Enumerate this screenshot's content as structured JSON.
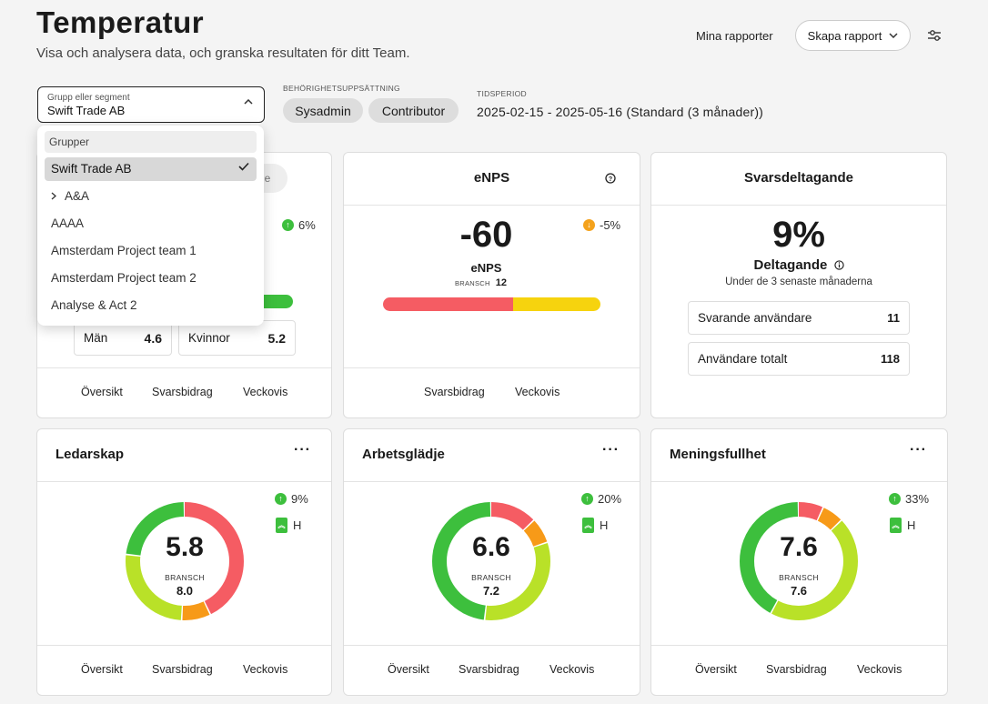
{
  "header": {
    "title": "Temperatur",
    "subtitle": "Visa och analysera data, och granska resultaten för ditt Team.",
    "my_reports": "Mina rapporter",
    "create_report": "Skapa rapport"
  },
  "filters": {
    "group_label": "Grupp eller segment",
    "group_value": "Swift Trade AB",
    "permission_label": "BEHÖRIGHETSUPPSÄTTNING",
    "permissions": [
      "Sysadmin",
      "Contributor"
    ],
    "period_label": "TIDSPERIOD",
    "period_value": "2025-02-15 - 2025-05-16 (Standard (3 månader))"
  },
  "dropdown": {
    "header": "Grupper",
    "items": [
      "Swift Trade AB",
      "A&A",
      "AAAA",
      "Amsterdam Project team 1",
      "Amsterdam Project team 2",
      "Analyse & Act 2"
    ],
    "selected_index": 0
  },
  "card_first": {
    "partial_tab": "ne",
    "trend": "6%",
    "genders": [
      {
        "label": "Män",
        "value": "4.6"
      },
      {
        "label": "Kvinnor",
        "value": "5.2"
      }
    ],
    "links": [
      "Översikt",
      "Svarsbidrag",
      "Veckovis"
    ]
  },
  "card_enps": {
    "title": "eNPS",
    "value": "-60",
    "label": "eNPS",
    "bench_label": "BRANSCH",
    "bench_value": "12",
    "trend": "-5%",
    "bar_red_fraction": 0.6,
    "links": [
      "Svarsbidrag",
      "Veckovis"
    ]
  },
  "card_participation": {
    "title": "Svarsdeltagande",
    "value": "9%",
    "label": "Deltagande",
    "sublabel": "Under de 3 senaste månaderna",
    "rows": [
      {
        "label": "Svarande användare",
        "value": "11"
      },
      {
        "label": "Användare totalt",
        "value": "118"
      }
    ]
  },
  "metric_cards": [
    {
      "title": "Ledarskap",
      "score": "5.8",
      "bench_label": "BRANSCH",
      "bench": "8.0",
      "trend": "9%",
      "level": "H",
      "segments": [
        {
          "color": "#f55c63",
          "value": 0.43
        },
        {
          "color": "#f79a18",
          "value": 0.08
        },
        {
          "color": "#b9e128",
          "value": 0.26
        },
        {
          "color": "#3dbf3d",
          "value": 0.23
        }
      ]
    },
    {
      "title": "Arbetsglädje",
      "score": "6.6",
      "bench_label": "BRANSCH",
      "bench": "7.2",
      "trend": "20%",
      "level": "H",
      "segments": [
        {
          "color": "#f55c63",
          "value": 0.13
        },
        {
          "color": "#f79a18",
          "value": 0.07
        },
        {
          "color": "#b9e128",
          "value": 0.32
        },
        {
          "color": "#3dbf3d",
          "value": 0.48
        }
      ]
    },
    {
      "title": "Meningsfullhet",
      "score": "7.6",
      "bench_label": "BRANSCH",
      "bench": "7.6",
      "trend": "33%",
      "level": "H",
      "segments": [
        {
          "color": "#f55c63",
          "value": 0.07
        },
        {
          "color": "#f79a18",
          "value": 0.06
        },
        {
          "color": "#b9e128",
          "value": 0.45
        },
        {
          "color": "#3dbf3d",
          "value": 0.42
        }
      ]
    }
  ],
  "metric_links": [
    "Översikt",
    "Svarsbidrag",
    "Veckovis"
  ],
  "colors": {
    "positive": "#3dbf3d",
    "warning": "#f4a21c",
    "negative": "#f55c63",
    "neutral": "#f6d30e"
  }
}
